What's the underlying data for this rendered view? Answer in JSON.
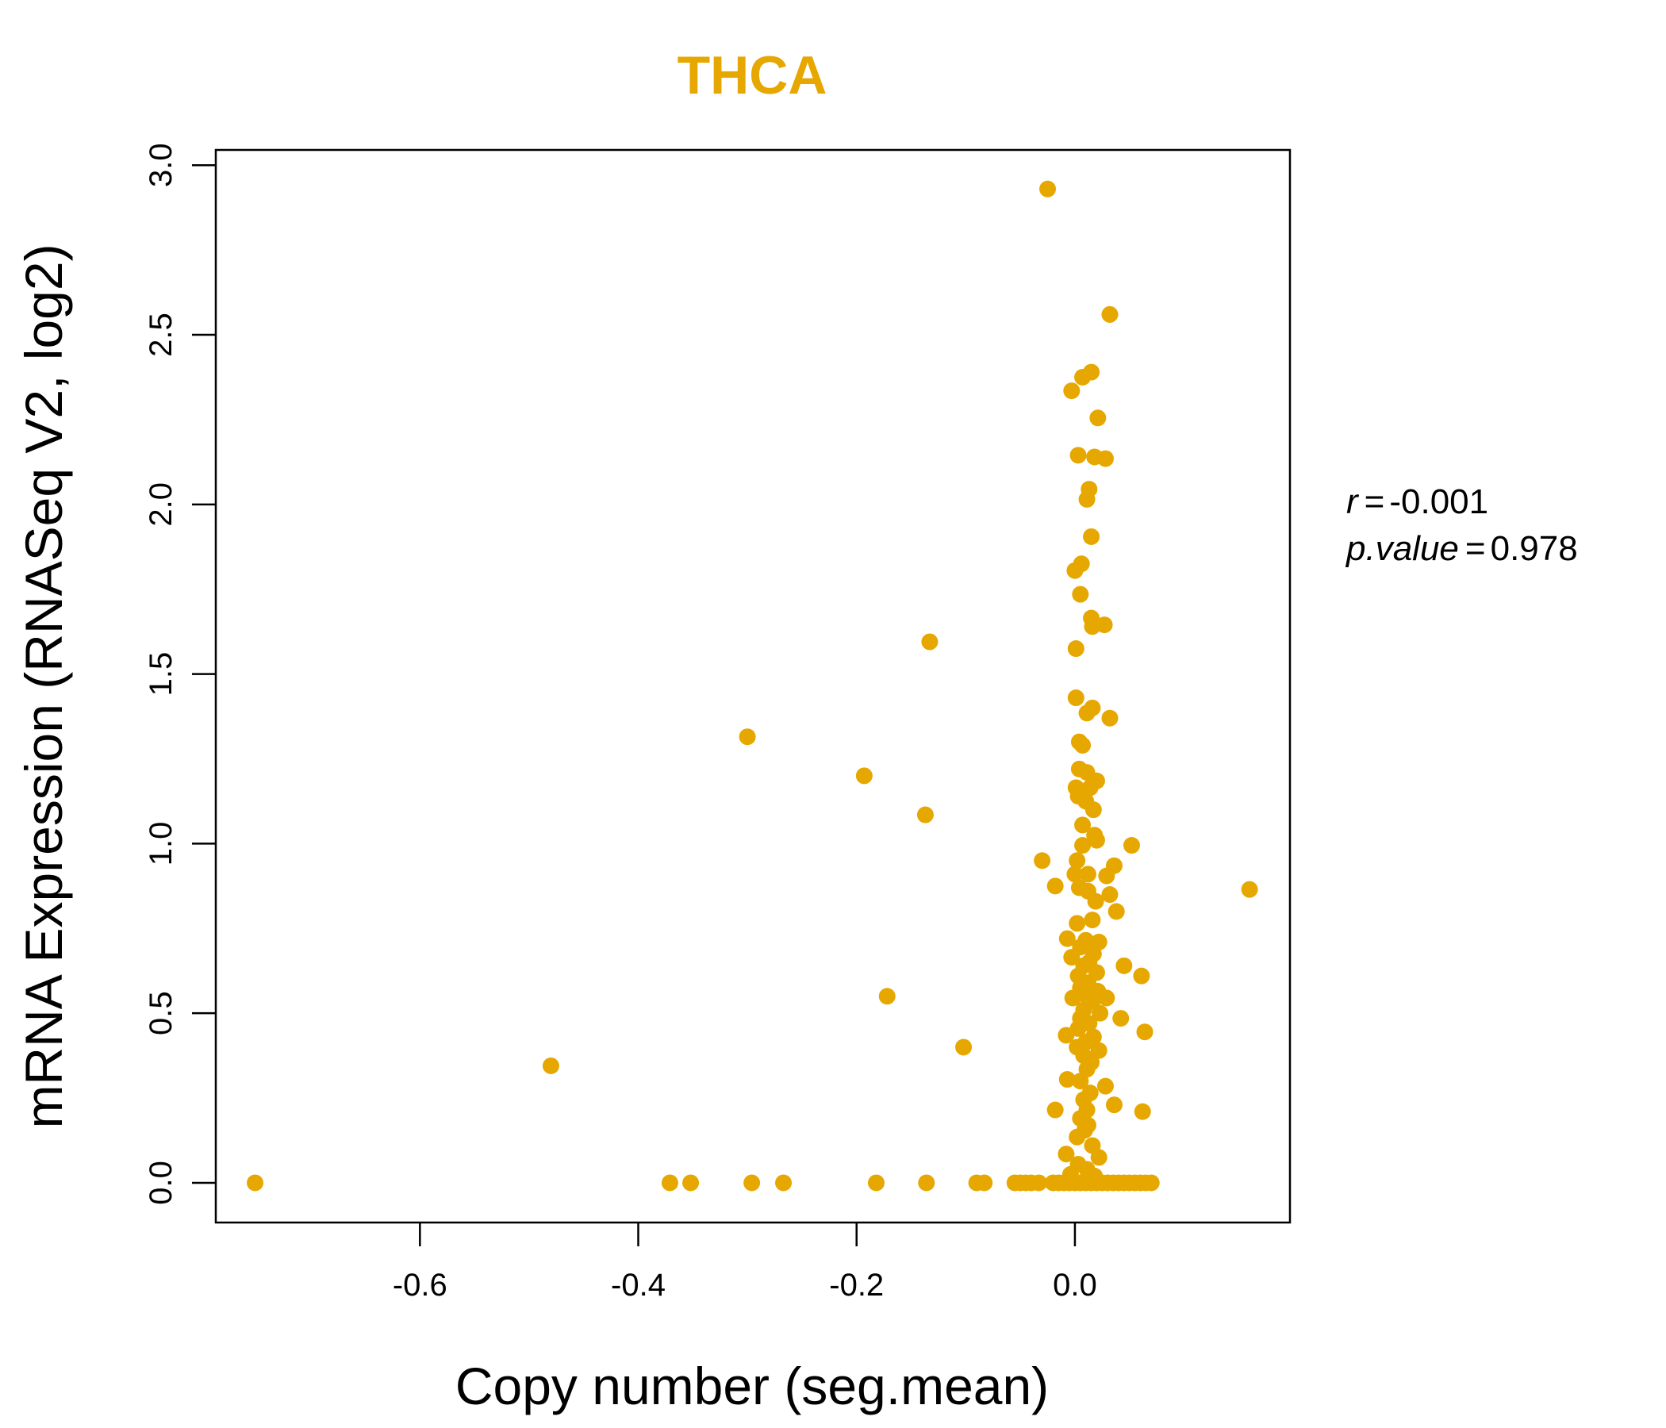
{
  "chart_data": {
    "type": "scatter",
    "title": "THCA",
    "xlabel": "Copy number (seg.mean)",
    "ylabel": "mRNA Expression (RNASeq V2, log2)",
    "xlim": [
      -0.787,
      0.197
    ],
    "ylim": [
      -0.117,
      3.045
    ],
    "x_ticks": [
      -0.6,
      -0.4,
      -0.2,
      0.0
    ],
    "x_tick_labels": [
      "-0.6",
      "-0.4",
      "-0.2",
      "0.0"
    ],
    "y_ticks": [
      0.0,
      0.5,
      1.0,
      1.5,
      2.0,
      2.5,
      3.0
    ],
    "y_tick_labels": [
      "0.0",
      "0.5",
      "1.0",
      "1.5",
      "2.0",
      "2.5",
      "3.0"
    ],
    "stats": {
      "r_label": "r",
      "r_value": "-0.001",
      "p_label": "p.value",
      "p_value": "0.978"
    },
    "colors": {
      "points": "#E6A800",
      "title": "#E6A800",
      "axis": "#000000"
    },
    "points": [
      [
        -0.751,
        0.0
      ],
      [
        -0.371,
        0.0
      ],
      [
        -0.352,
        0.0
      ],
      [
        -0.296,
        0.0
      ],
      [
        -0.267,
        0.0
      ],
      [
        -0.182,
        0.0
      ],
      [
        -0.136,
        0.0
      ],
      [
        -0.09,
        0.0
      ],
      [
        -0.083,
        0.0
      ],
      [
        -0.055,
        0.0
      ],
      [
        -0.05,
        0.0
      ],
      [
        -0.045,
        0.0
      ],
      [
        -0.04,
        0.0
      ],
      [
        -0.033,
        0.0
      ],
      [
        -0.02,
        0.0
      ],
      [
        -0.015,
        0.0
      ],
      [
        -0.01,
        0.0
      ],
      [
        -0.005,
        0.0
      ],
      [
        0.0,
        0.0
      ],
      [
        0.005,
        0.0
      ],
      [
        0.01,
        0.0
      ],
      [
        0.015,
        0.0
      ],
      [
        0.02,
        0.0
      ],
      [
        0.025,
        0.0
      ],
      [
        0.03,
        0.0
      ],
      [
        0.035,
        0.0
      ],
      [
        0.04,
        0.0
      ],
      [
        0.045,
        0.0
      ],
      [
        0.05,
        0.0
      ],
      [
        0.055,
        0.0
      ],
      [
        0.06,
        0.0
      ],
      [
        0.065,
        0.0
      ],
      [
        0.07,
        0.0
      ],
      [
        -0.48,
        0.345
      ],
      [
        -0.3,
        1.315
      ],
      [
        -0.193,
        1.2
      ],
      [
        -0.172,
        0.55
      ],
      [
        -0.137,
        1.085
      ],
      [
        -0.133,
        1.595
      ],
      [
        -0.102,
        0.4
      ],
      [
        -0.025,
        2.93
      ],
      [
        0.032,
        2.56
      ],
      [
        0.015,
        2.39
      ],
      [
        0.007,
        2.375
      ],
      [
        -0.003,
        2.335
      ],
      [
        0.021,
        2.255
      ],
      [
        0.003,
        2.145
      ],
      [
        0.018,
        2.14
      ],
      [
        0.028,
        2.135
      ],
      [
        0.013,
        2.045
      ],
      [
        0.011,
        2.015
      ],
      [
        0.015,
        1.905
      ],
      [
        0.006,
        1.825
      ],
      [
        0.0,
        1.805
      ],
      [
        0.005,
        1.735
      ],
      [
        0.015,
        1.665
      ],
      [
        0.027,
        1.645
      ],
      [
        0.016,
        1.64
      ],
      [
        0.001,
        1.575
      ],
      [
        0.001,
        1.43
      ],
      [
        0.016,
        1.4
      ],
      [
        0.011,
        1.385
      ],
      [
        0.032,
        1.37
      ],
      [
        0.004,
        1.3
      ],
      [
        0.007,
        1.29
      ],
      [
        0.004,
        1.22
      ],
      [
        0.011,
        1.21
      ],
      [
        0.02,
        1.185
      ],
      [
        0.001,
        1.165
      ],
      [
        0.014,
        1.165
      ],
      [
        0.003,
        1.14
      ],
      [
        0.01,
        1.125
      ],
      [
        0.017,
        1.1
      ],
      [
        0.007,
        1.055
      ],
      [
        0.018,
        1.025
      ],
      [
        0.02,
        1.01
      ],
      [
        0.007,
        0.995
      ],
      [
        0.052,
        0.995
      ],
      [
        -0.03,
        0.95
      ],
      [
        0.002,
        0.95
      ],
      [
        0.036,
        0.935
      ],
      [
        0.0,
        0.91
      ],
      [
        0.012,
        0.91
      ],
      [
        0.029,
        0.905
      ],
      [
        -0.018,
        0.875
      ],
      [
        0.004,
        0.87
      ],
      [
        0.012,
        0.86
      ],
      [
        0.032,
        0.85
      ],
      [
        0.019,
        0.83
      ],
      [
        0.038,
        0.8
      ],
      [
        0.016,
        0.775
      ],
      [
        0.002,
        0.765
      ],
      [
        -0.007,
        0.72
      ],
      [
        0.01,
        0.715
      ],
      [
        0.022,
        0.71
      ],
      [
        0.005,
        0.695
      ],
      [
        0.017,
        0.675
      ],
      [
        -0.003,
        0.665
      ],
      [
        0.013,
        0.65
      ],
      [
        0.008,
        0.64
      ],
      [
        0.045,
        0.64
      ],
      [
        0.02,
        0.62
      ],
      [
        0.003,
        0.61
      ],
      [
        0.061,
        0.61
      ],
      [
        0.012,
        0.59
      ],
      [
        0.005,
        0.575
      ],
      [
        0.021,
        0.565
      ],
      [
        0.011,
        0.55
      ],
      [
        0.029,
        0.545
      ],
      [
        -0.002,
        0.545
      ],
      [
        0.016,
        0.535
      ],
      [
        0.008,
        0.51
      ],
      [
        0.023,
        0.5
      ],
      [
        0.005,
        0.485
      ],
      [
        0.042,
        0.485
      ],
      [
        0.013,
        0.47
      ],
      [
        0.003,
        0.455
      ],
      [
        0.064,
        0.445
      ],
      [
        -0.008,
        0.435
      ],
      [
        0.017,
        0.43
      ],
      [
        0.01,
        0.415
      ],
      [
        0.002,
        0.4
      ],
      [
        0.022,
        0.39
      ],
      [
        0.008,
        0.375
      ],
      [
        0.015,
        0.355
      ],
      [
        0.011,
        0.335
      ],
      [
        -0.007,
        0.305
      ],
      [
        0.005,
        0.3
      ],
      [
        0.028,
        0.285
      ],
      [
        0.014,
        0.265
      ],
      [
        0.008,
        0.245
      ],
      [
        0.036,
        0.23
      ],
      [
        -0.018,
        0.215
      ],
      [
        0.011,
        0.215
      ],
      [
        0.062,
        0.21
      ],
      [
        0.005,
        0.19
      ],
      [
        0.012,
        0.17
      ],
      [
        0.009,
        0.155
      ],
      [
        0.002,
        0.135
      ],
      [
        0.016,
        0.11
      ],
      [
        -0.008,
        0.085
      ],
      [
        0.022,
        0.075
      ],
      [
        0.003,
        0.055
      ],
      [
        0.011,
        0.04
      ],
      [
        -0.004,
        0.025
      ],
      [
        0.018,
        0.02
      ],
      [
        0.16,
        0.865
      ]
    ]
  }
}
